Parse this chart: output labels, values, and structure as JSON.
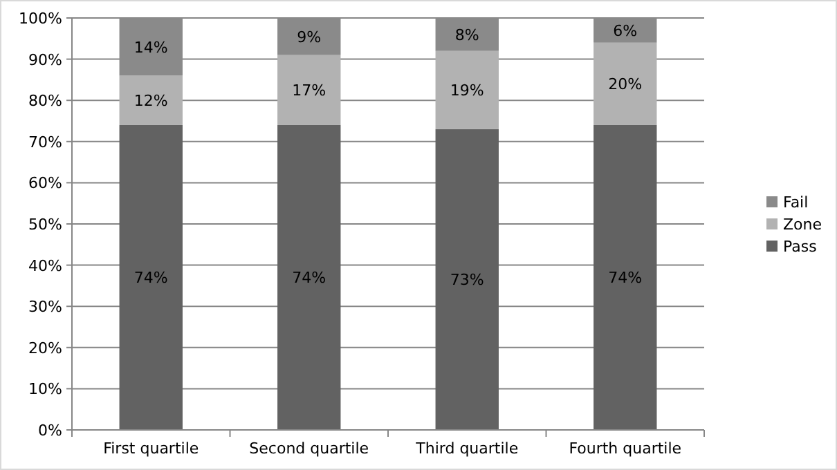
{
  "chart_data": {
    "type": "bar",
    "stacked": true,
    "categories": [
      "First quartile",
      "Second quartile",
      "Third quartile",
      "Fourth quartile"
    ],
    "series": [
      {
        "name": "Pass",
        "color": "#626262",
        "values": [
          74,
          74,
          73,
          74
        ],
        "value_labels": [
          "74%",
          "74%",
          "73%",
          "74%"
        ]
      },
      {
        "name": "Zone",
        "color": "#b2b2b2",
        "values": [
          12,
          17,
          19,
          20
        ],
        "value_labels": [
          "12%",
          "17%",
          "19%",
          "20%"
        ]
      },
      {
        "name": "Fail",
        "color": "#8a8a8a",
        "values": [
          14,
          9,
          8,
          6
        ],
        "value_labels": [
          "14%",
          "9%",
          "8%",
          "6%"
        ]
      }
    ],
    "ylim": [
      0,
      100
    ],
    "yticks": [
      {
        "value": 0,
        "label": "0%"
      },
      {
        "value": 10,
        "label": "10%"
      },
      {
        "value": 20,
        "label": "20%"
      },
      {
        "value": 30,
        "label": "30%"
      },
      {
        "value": 40,
        "label": "40%"
      },
      {
        "value": 50,
        "label": "50%"
      },
      {
        "value": 60,
        "label": "60%"
      },
      {
        "value": 70,
        "label": "70%"
      },
      {
        "value": 80,
        "label": "80%"
      },
      {
        "value": 90,
        "label": "90%"
      },
      {
        "value": 100,
        "label": "100%"
      }
    ],
    "grid": "y",
    "legend": "right"
  }
}
